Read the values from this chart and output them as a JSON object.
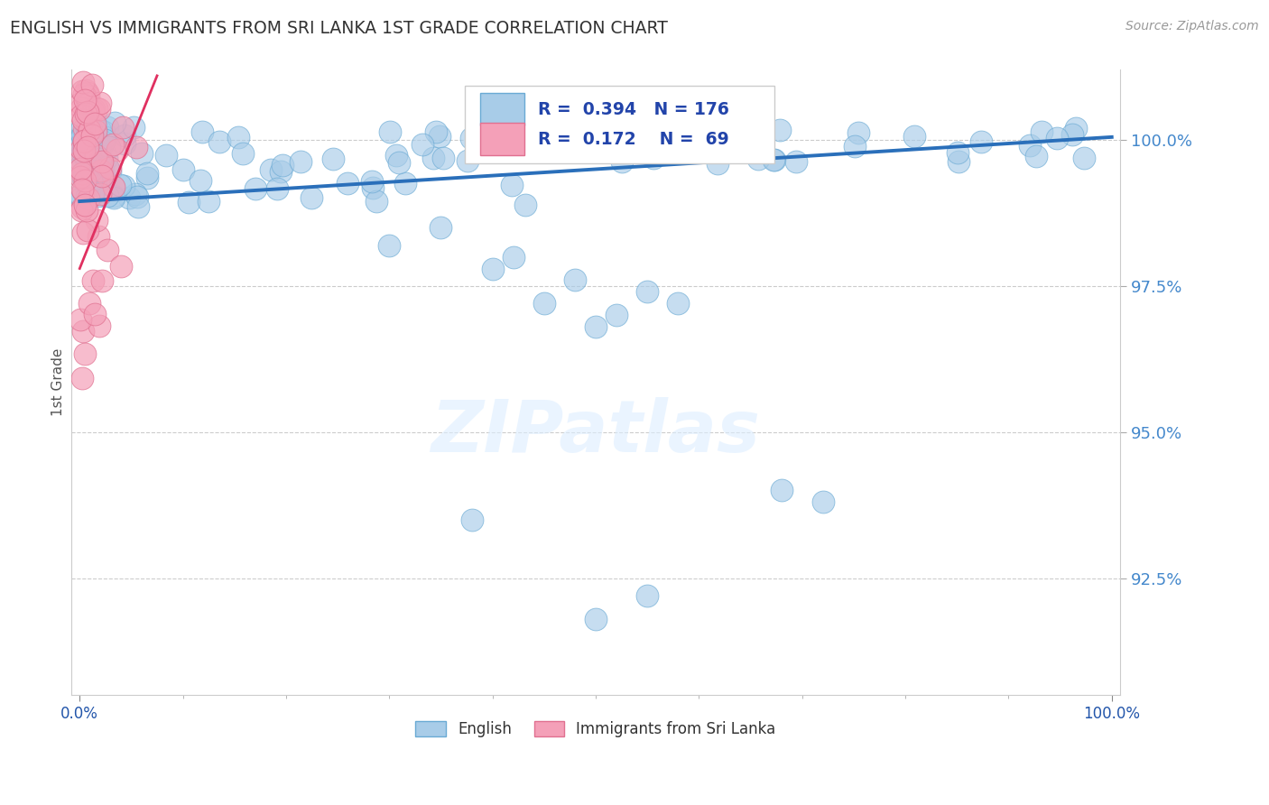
{
  "title": "ENGLISH VS IMMIGRANTS FROM SRI LANKA 1ST GRADE CORRELATION CHART",
  "source": "Source: ZipAtlas.com",
  "ylabel": "1st Grade",
  "watermark": "ZIPatlas",
  "xlim": [
    0.0,
    1.0
  ],
  "ymin": 90.5,
  "ymax": 101.2,
  "ytick_vals": [
    92.5,
    95.0,
    97.5,
    100.0
  ],
  "legend": {
    "blue_R": "0.394",
    "blue_N": "176",
    "pink_R": "0.172",
    "pink_N": "69"
  },
  "blue_color": "#a8cce8",
  "pink_color": "#f4a0b8",
  "blue_edge_color": "#6aaad4",
  "pink_edge_color": "#e07090",
  "blue_line_color": "#2a6fba",
  "pink_line_color": "#e03060",
  "background_color": "#ffffff",
  "grid_color": "#cccccc",
  "title_color": "#333333",
  "source_color": "#999999",
  "tick_color": "#4488cc",
  "legend_text_color": "#2244aa"
}
